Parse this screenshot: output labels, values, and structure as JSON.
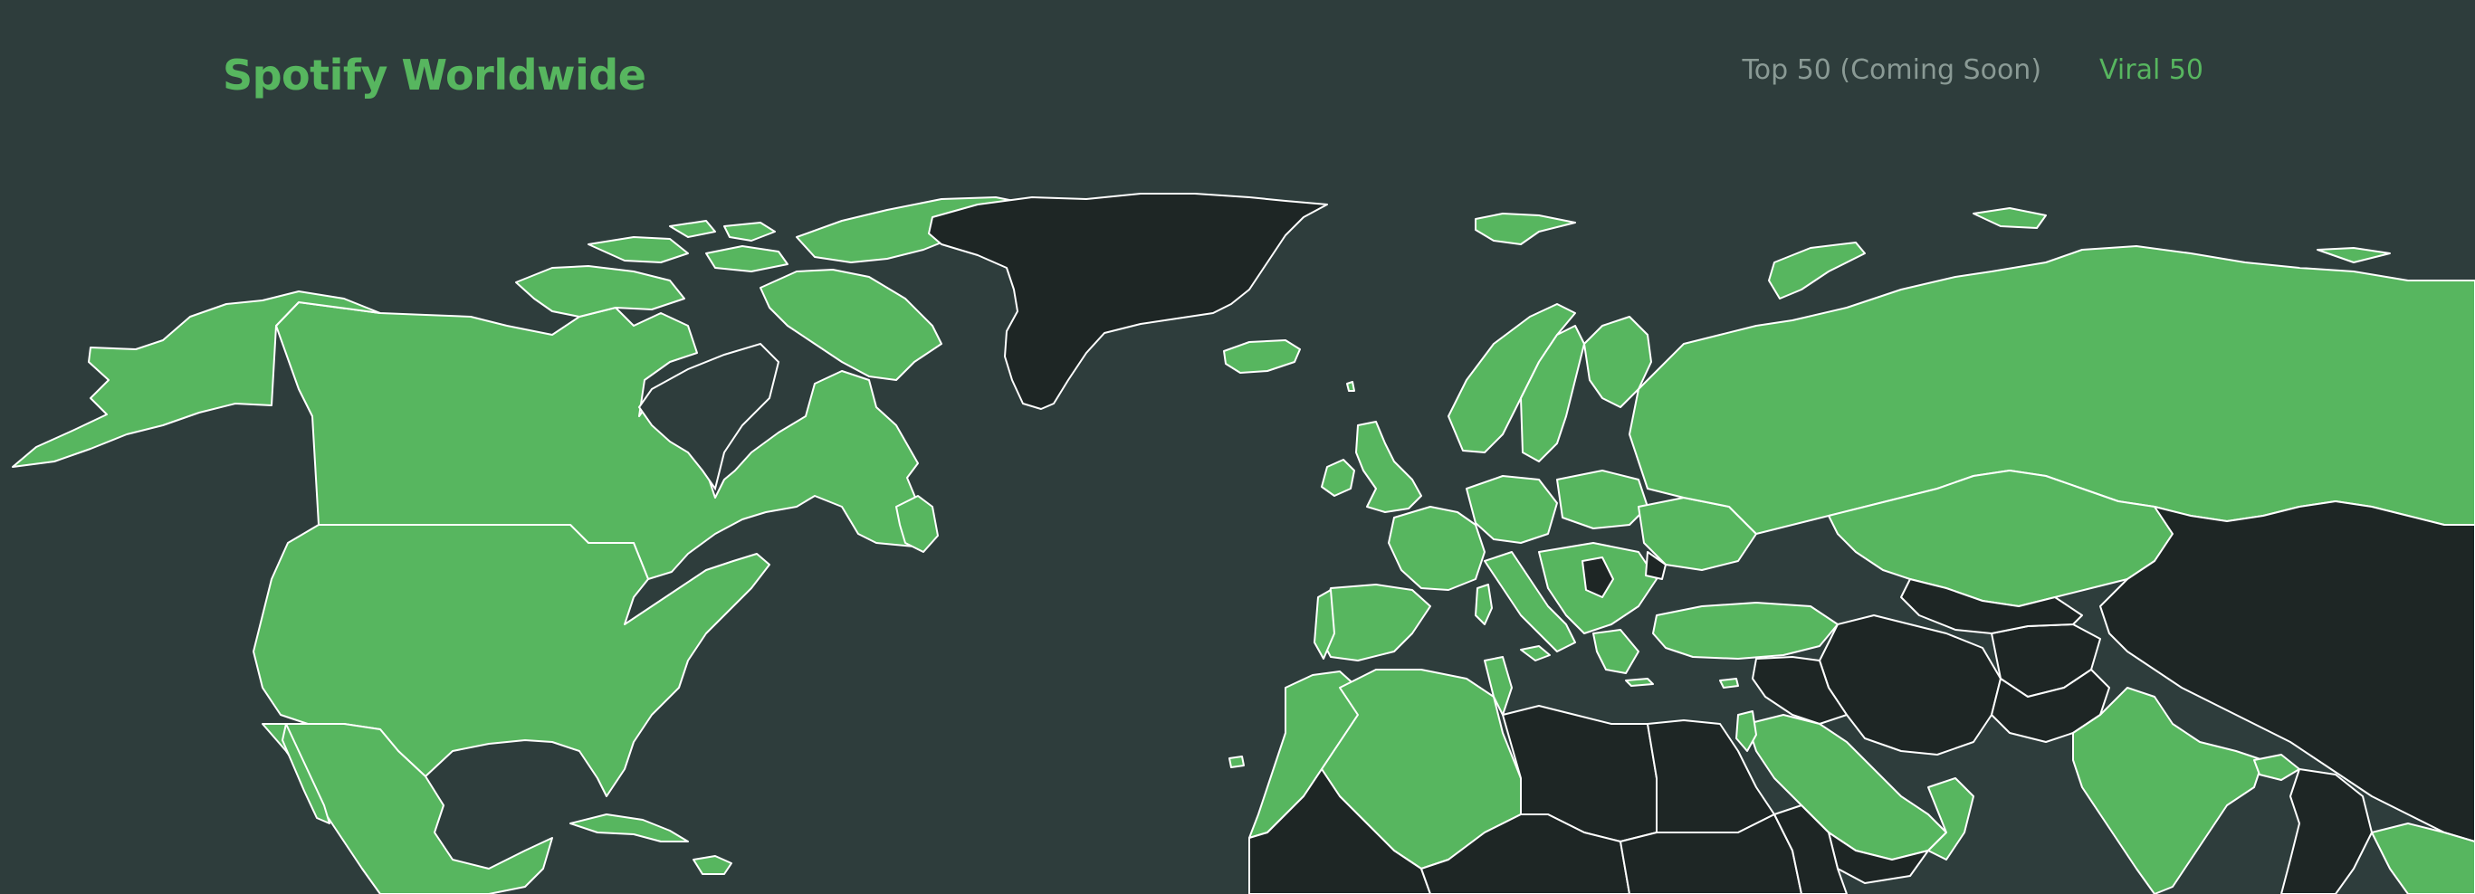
{
  "app": {
    "title": "Spotify Worldwide"
  },
  "nav": {
    "items": [
      {
        "label": "Top 50 (Coming Soon)",
        "active": false
      },
      {
        "label": "Viral 50",
        "active": true
      }
    ]
  },
  "colors": {
    "background": "#2e3d3c",
    "available": "#57b65f",
    "unavailable": "#1e2625",
    "border": "#ffffff",
    "nav_inactive": "#8a9a95"
  },
  "map": {
    "legend_meaning": {
      "available_fill": "#57b65f",
      "unavailable_fill": "#1e2625"
    }
  }
}
